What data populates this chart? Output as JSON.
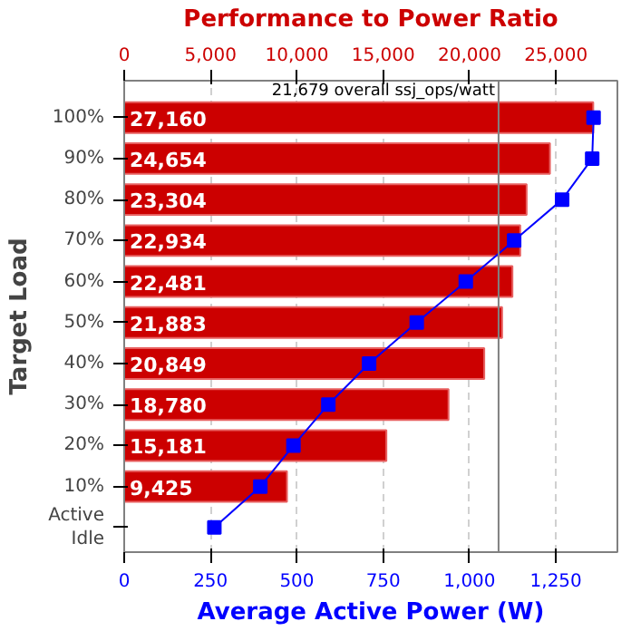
{
  "chart_data": {
    "type": "bar",
    "orientation": "horizontal",
    "x2label": "Performance to Power Ratio",
    "xlabel": "Average Active Power (W)",
    "ylabel": "Target Load",
    "categories": [
      "100%",
      "90%",
      "80%",
      "70%",
      "60%",
      "50%",
      "40%",
      "30%",
      "20%",
      "10%",
      "Active\nIdle"
    ],
    "series": [
      {
        "axis": "x2",
        "color": "#cc0000",
        "values": [
          27160,
          24654,
          23304,
          22934,
          22481,
          21883,
          20849,
          18780,
          15181,
          9425,
          null
        ],
        "value_labels": [
          "27,160",
          "24,654",
          "23,304",
          "22,934",
          "22,481",
          "21,883",
          "20,849",
          "18,780",
          "15,181",
          "9,425",
          null
        ]
      },
      {
        "type": "line",
        "color": "#0000ff",
        "marker": "square",
        "values": [
          1359,
          1355,
          1268,
          1129,
          989,
          847,
          709,
          591,
          490,
          394,
          261
        ]
      }
    ],
    "xlim": [
      0,
      1428
    ],
    "xticks": [
      0,
      250,
      500,
      750,
      {
        "value": 1000,
        "label": "1,000"
      },
      {
        "value": 1250,
        "label": "1,250"
      }
    ],
    "x2lim": [
      0,
      28560
    ],
    "x2ticks": [
      0,
      {
        "value": 5000,
        "label": "5,000"
      },
      {
        "value": 10000,
        "label": "10,000"
      },
      {
        "value": 15000,
        "label": "15,000"
      },
      {
        "value": 20000,
        "label": "20,000"
      },
      {
        "value": 25000,
        "label": "25,000"
      }
    ],
    "ref_lines": [
      {
        "axis": "x2",
        "value": 21679,
        "label": "21,679 overall ssj_ops/watt",
        "color": "#808080"
      }
    ],
    "grid": "x"
  }
}
